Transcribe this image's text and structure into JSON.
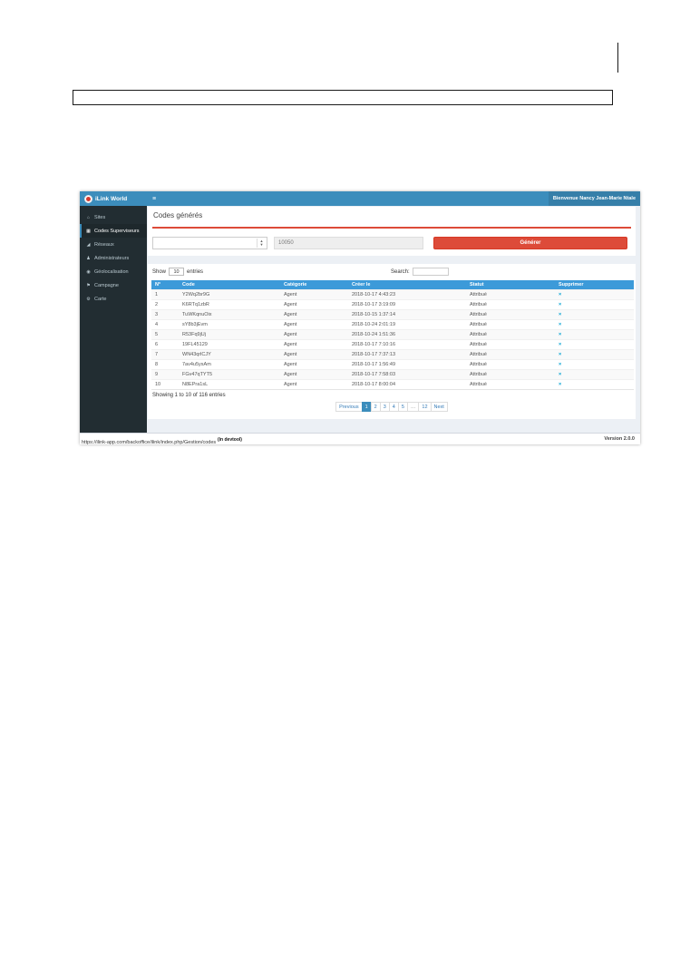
{
  "app": {
    "navbar": {
      "brand": "iLink World",
      "menu_toggle": "≡",
      "user_greeting": "Bienvenue Nancy Jean-Marie Ntale"
    },
    "sidebar": {
      "items": [
        {
          "label": "Sites",
          "icon": "⌂"
        },
        {
          "label": "Codes Superviseurs",
          "icon": "▦"
        },
        {
          "label": "Réseaux",
          "icon": "◢"
        },
        {
          "label": "Administrateurs",
          "icon": "♟"
        },
        {
          "label": "Géolocalisation",
          "icon": "◉"
        },
        {
          "label": "Campagne",
          "icon": "⚑"
        },
        {
          "label": "Carte",
          "icon": "⚙"
        }
      ]
    },
    "main": {
      "page_title": "Codes générés",
      "form": {
        "spinner_up": "▲",
        "spinner_down": "▼",
        "code_field_value": "10050",
        "generate_button": "Générer"
      },
      "controls": {
        "show_label": "Show",
        "page_size": "10",
        "entries_label": "entries",
        "search_label": "Search:"
      },
      "table": {
        "columns": [
          "N°",
          "Code",
          "Catégorie",
          "Créer le",
          "Statut",
          "Supprimer"
        ],
        "rows": [
          {
            "n": "1",
            "code": "Y2Wq2br9G",
            "category": "Agent",
            "created": "2018-10-17 4:43:23",
            "status": "Attribué",
            "delete": "×"
          },
          {
            "n": "2",
            "code": "K6RTq1zbR",
            "category": "Agent",
            "created": "2018-10-17 3:19:09",
            "status": "Attribué",
            "delete": "×"
          },
          {
            "n": "3",
            "code": "TuWKqnuOix",
            "category": "Agent",
            "created": "2018-10-15 1:37:14",
            "status": "Attribué",
            "delete": "×"
          },
          {
            "n": "4",
            "code": "sY8b3jEvm",
            "category": "Agent",
            "created": "2018-10-24 2:01:19",
            "status": "Attribué",
            "delete": "×"
          },
          {
            "n": "5",
            "code": "R53Fq9jUj",
            "category": "Agent",
            "created": "2018-10-24 1:51:36",
            "status": "Attribué",
            "delete": "×"
          },
          {
            "n": "6",
            "code": "19FL45129",
            "category": "Agent",
            "created": "2018-10-17 7:10:16",
            "status": "Attribué",
            "delete": "×"
          },
          {
            "n": "7",
            "code": "WN43qrlCJY",
            "category": "Agent",
            "created": "2018-10-17 7:37:13",
            "status": "Attribué",
            "delete": "×"
          },
          {
            "n": "8",
            "code": "7av4u5ysAm",
            "category": "Agent",
            "created": "2018-10-17 1:56:49",
            "status": "Attribué",
            "delete": "×"
          },
          {
            "n": "9",
            "code": "FGv47qTYT5",
            "category": "Agent",
            "created": "2018-10-17 7:58:03",
            "status": "Attribué",
            "delete": "×"
          },
          {
            "n": "10",
            "code": "N8EPra1sL",
            "category": "Agent",
            "created": "2018-10-17 8:00:04",
            "status": "Attribué",
            "delete": "×"
          }
        ]
      },
      "info": "Showing 1 to 10 of 116 entries",
      "pagination": {
        "previous": "Previous",
        "pages": [
          "1",
          "2",
          "3",
          "4",
          "5",
          "…",
          "12"
        ],
        "active_page": "1",
        "next": "Next"
      },
      "footer_version": "Version 2.0.0"
    },
    "statusbar": {
      "url": "https://ilink-app.com/backoffice/ilink/index.php/Gestion/codes",
      "note": "(in devtool)"
    }
  },
  "colors": {
    "navbar": "#3c8dbc",
    "navbar_user_bg": "#367fa9",
    "sidebar": "#222d32",
    "sidebar_active_bg": "#1e282c",
    "content_bg": "#ecf0f5",
    "table_header": "#3c9ad9",
    "danger_red": "#dd4b39",
    "pagination_active": "#3c8dbc",
    "delete_icon": "#00a2d3"
  }
}
